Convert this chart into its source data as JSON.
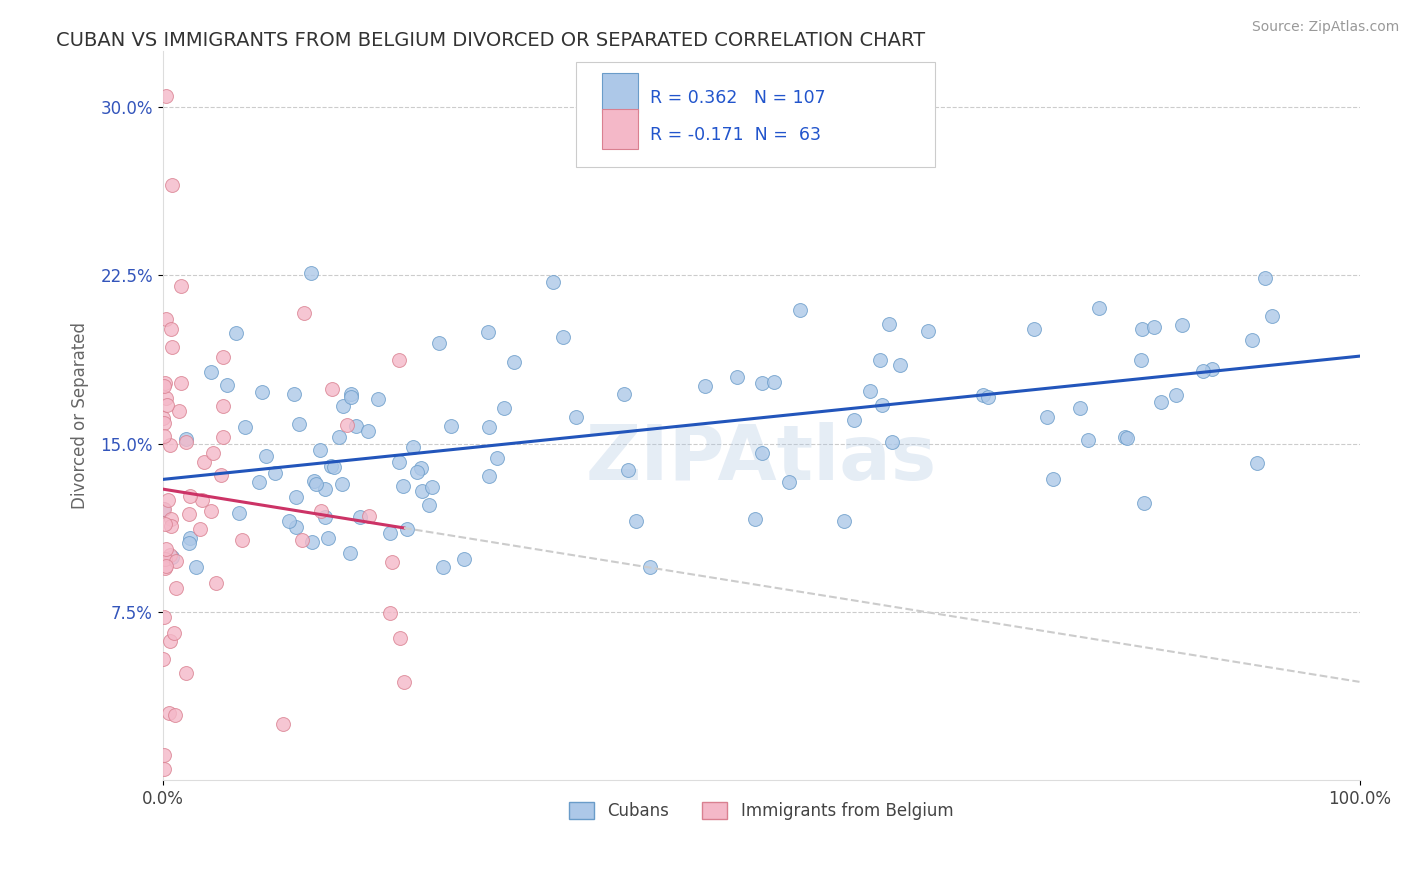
{
  "title": "CUBAN VS IMMIGRANTS FROM BELGIUM DIVORCED OR SEPARATED CORRELATION CHART",
  "source_text": "Source: ZipAtlas.com",
  "ylabel": "Divorced or Separated",
  "watermark": "ZIPAtlas",
  "xlim": [
    0,
    100
  ],
  "ylim": [
    0,
    32.5
  ],
  "xtick_values": [
    0,
    100
  ],
  "xtick_labels": [
    "0.0%",
    "100.0%"
  ],
  "ytick_values": [
    7.5,
    15.0,
    22.5,
    30.0
  ],
  "ytick_labels": [
    "7.5%",
    "15.0%",
    "22.5%",
    "30.0%"
  ],
  "cubans_R": 0.362,
  "cubans_N": 107,
  "belgium_R": -0.171,
  "belgium_N": 63,
  "cubans_color": "#adc8e8",
  "cubans_edge_color": "#6a9cc9",
  "belgium_color": "#f4b8c8",
  "belgium_edge_color": "#d98090",
  "trend_blue": "#2255bb",
  "trend_pink": "#cc3366",
  "trend_dashed_color": "#cccccc",
  "title_color": "#333333",
  "title_fontsize": 14,
  "axis_label_color": "#666666",
  "legend_text_color": "#2255cc",
  "source_color": "#999999",
  "background_color": "#ffffff",
  "grid_color": "#cccccc",
  "scatter_size": 100
}
